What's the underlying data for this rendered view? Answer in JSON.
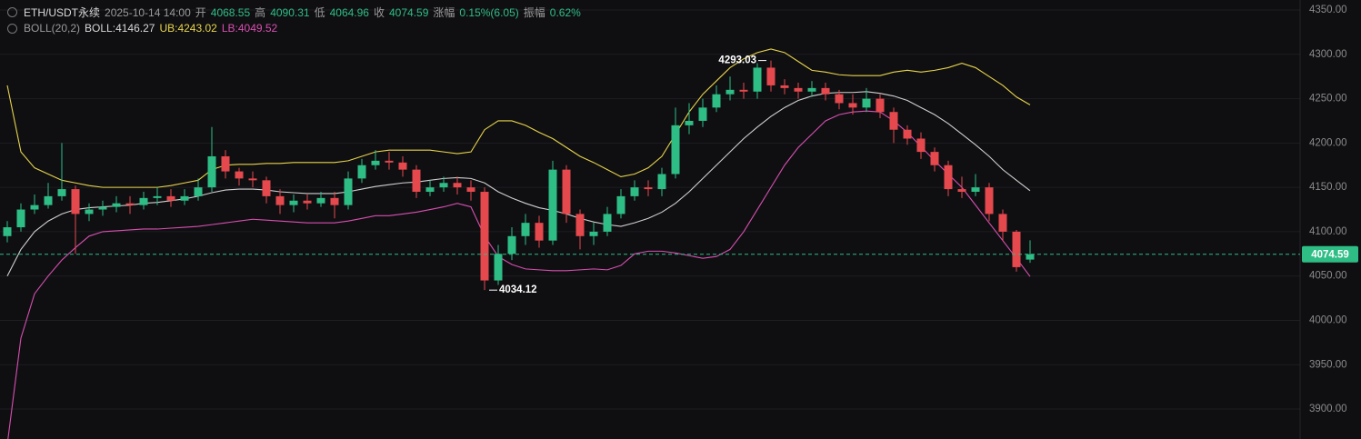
{
  "header": {
    "line1": [
      "ETH/USDT永续",
      "2025-10-14 14:00",
      "开",
      "4068.55",
      "高",
      "4090.31",
      "低",
      "4064.96",
      "收",
      "4074.59",
      "涨幅",
      "0.15%(6.05)",
      "振幅",
      "0.62%"
    ],
    "line2": [
      "BOLL(20,2)",
      "BOLL:4146.27",
      "UB:4243.02",
      "LB:4049.52"
    ]
  },
  "chart_data": {
    "type": "candlestick",
    "open": [
      4095,
      4105,
      4125,
      4130,
      4140,
      4148,
      4120,
      4125,
      4128,
      4132,
      4130,
      4138,
      4140,
      4135,
      4140,
      4150,
      4185,
      4168,
      4160,
      4158,
      4140,
      4130,
      4135,
      4132,
      4138,
      4130,
      4160,
      4175,
      4180,
      4178,
      4170,
      4145,
      4150,
      4155,
      4150,
      4145,
      4045,
      4075,
      4095,
      4110,
      4090,
      4170,
      4120,
      4095,
      4100,
      4120,
      4140,
      4150,
      4148,
      4165,
      4220,
      4225,
      4240,
      4255,
      4260,
      4258,
      4285,
      4265,
      4262,
      4258,
      4262,
      4255,
      4245,
      4240,
      4250,
      4235,
      4215,
      4205,
      4190,
      4175,
      4148,
      4145,
      4150,
      4120,
      4100,
      4068.55
    ],
    "high": [
      4112,
      4132,
      4142,
      4155,
      4200,
      4152,
      4132,
      4135,
      4140,
      4140,
      4145,
      4150,
      4148,
      4148,
      4160,
      4218,
      4192,
      4172,
      4168,
      4162,
      4148,
      4142,
      4142,
      4145,
      4145,
      4168,
      4182,
      4192,
      4190,
      4185,
      4175,
      4158,
      4162,
      4162,
      4158,
      4150,
      4085,
      4105,
      4120,
      4118,
      4180,
      4175,
      4125,
      4110,
      4128,
      4148,
      4158,
      4158,
      4172,
      4240,
      4245,
      4250,
      4265,
      4275,
      4268,
      4290,
      4293.03,
      4272,
      4268,
      4270,
      4268,
      4260,
      4255,
      4262,
      4255,
      4240,
      4220,
      4212,
      4195,
      4180,
      4162,
      4165,
      4155,
      4125,
      4102,
      4090.31
    ],
    "low": [
      4088,
      4100,
      4120,
      4126,
      4135,
      4075,
      4112,
      4118,
      4122,
      4120,
      4125,
      4130,
      4128,
      4130,
      4135,
      4145,
      4160,
      4152,
      4150,
      4132,
      4120,
      4122,
      4125,
      4128,
      4115,
      4125,
      4155,
      4170,
      4170,
      4162,
      4138,
      4140,
      4145,
      4142,
      4135,
      4034.12,
      4040,
      4068,
      4085,
      4082,
      4085,
      4110,
      4080,
      4085,
      4095,
      4115,
      4135,
      4140,
      4140,
      4160,
      4210,
      4218,
      4235,
      4248,
      4250,
      4250,
      4258,
      4255,
      4250,
      4252,
      4248,
      4238,
      4232,
      4235,
      4228,
      4200,
      4198,
      4182,
      4168,
      4140,
      4138,
      4140,
      4112,
      4090,
      4055,
      4064.96
    ],
    "close": [
      4105,
      4125,
      4130,
      4140,
      4148,
      4120,
      4125,
      4128,
      4132,
      4130,
      4138,
      4140,
      4135,
      4140,
      4150,
      4185,
      4168,
      4160,
      4158,
      4140,
      4130,
      4135,
      4132,
      4138,
      4130,
      4160,
      4175,
      4180,
      4178,
      4170,
      4145,
      4150,
      4155,
      4150,
      4145,
      4045,
      4075,
      4095,
      4110,
      4090,
      4170,
      4120,
      4095,
      4100,
      4120,
      4140,
      4150,
      4148,
      4165,
      4220,
      4225,
      4240,
      4255,
      4260,
      4258,
      4285,
      4265,
      4262,
      4258,
      4262,
      4255,
      4245,
      4240,
      4250,
      4235,
      4215,
      4205,
      4190,
      4175,
      4148,
      4145,
      4150,
      4120,
      4100,
      4060,
      4074.59
    ],
    "up_color": "#2ebd85",
    "down_color": "#e5484d",
    "lines": [
      {
        "color": "#d0d0d0",
        "values": [
          4050,
          4080,
          4100,
          4112,
          4120,
          4125,
          4127,
          4128,
          4129,
          4130,
          4132,
          4133,
          4135,
          4137,
          4140,
          4144,
          4147,
          4148,
          4148,
          4147,
          4145,
          4144,
          4143,
          4143,
          4143,
          4145,
          4148,
          4151,
          4153,
          4155,
          4156,
          4158,
          4160,
          4161,
          4160,
          4155,
          4145,
          4138,
          4132,
          4127,
          4124,
          4120,
          4115,
          4111,
          4108,
          4106,
          4110,
          4115,
          4122,
          4132,
          4145,
          4160,
          4175,
          4190,
          4205,
          4218,
          4230,
          4240,
          4248,
          4253,
          4256,
          4257,
          4257,
          4258,
          4256,
          4253,
          4248,
          4240,
          4232,
          4222,
          4210,
          4198,
          4185,
          4170,
          4158,
          4146.27
        ]
      },
      {
        "color": "#e8d44a",
        "values": [
          4265,
          4190,
          4172,
          4165,
          4158,
          4155,
          4152,
          4150,
          4150,
          4150,
          4150,
          4150,
          4152,
          4155,
          4158,
          4170,
          4175,
          4176,
          4176,
          4177,
          4177,
          4178,
          4178,
          4178,
          4178,
          4180,
          4185,
          4190,
          4192,
          4192,
          4192,
          4192,
          4190,
          4188,
          4190,
          4215,
          4225,
          4225,
          4220,
          4212,
          4205,
          4195,
          4185,
          4178,
          4170,
          4162,
          4165,
          4172,
          4185,
          4210,
          4235,
          4255,
          4270,
          4285,
          4295,
          4302,
          4306,
          4302,
          4292,
          4282,
          4280,
          4277,
          4276,
          4276,
          4276,
          4280,
          4282,
          4280,
          4282,
          4285,
          4290,
          4285,
          4275,
          4265,
          4252,
          4243.02
        ]
      },
      {
        "color": "#d84fb0",
        "values": [
          3860,
          3980,
          4030,
          4050,
          4068,
          4082,
          4095,
          4100,
          4101,
          4102,
          4103,
          4103,
          4104,
          4105,
          4106,
          4108,
          4110,
          4112,
          4114,
          4113,
          4112,
          4111,
          4110,
          4110,
          4110,
          4112,
          4115,
          4118,
          4118,
          4120,
          4122,
          4125,
          4128,
          4132,
          4128,
          4095,
          4072,
          4063,
          4058,
          4057,
          4056,
          4056,
          4057,
          4058,
          4057,
          4062,
          4075,
          4078,
          4078,
          4076,
          4073,
          4070,
          4072,
          4080,
          4100,
          4125,
          4150,
          4175,
          4195,
          4210,
          4225,
          4232,
          4235,
          4236,
          4235,
          4225,
          4212,
          4196,
          4180,
          4165,
          4150,
          4130,
          4110,
          4090,
          4070,
          4049.52
        ]
      }
    ],
    "last_price": 4074.59,
    "ylim": [
      3866.2,
      4361.3
    ],
    "yticks": [
      {
        "value": 3900,
        "label": "3900.00"
      },
      {
        "value": 3950,
        "label": "3950.00"
      },
      {
        "value": 4000,
        "label": "4000.00"
      },
      {
        "value": 4050,
        "label": "4050.00"
      },
      {
        "value": 4100,
        "label": "4100.00"
      },
      {
        "value": 4150,
        "label": "4150.00"
      },
      {
        "value": 4200,
        "label": "4200.00"
      },
      {
        "value": 4250,
        "label": "4250.00"
      },
      {
        "value": 4300,
        "label": "4300.00"
      },
      {
        "value": 4350,
        "label": "4350.00"
      }
    ],
    "grid": true
  }
}
